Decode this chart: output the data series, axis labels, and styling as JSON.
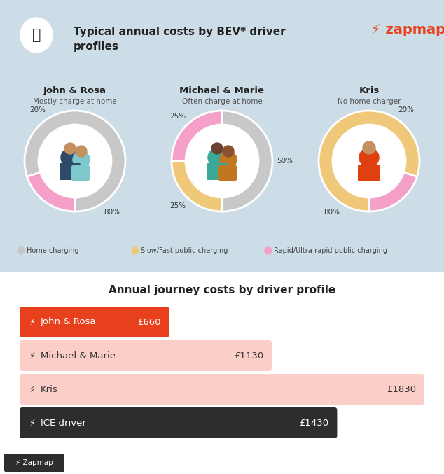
{
  "bg_color": "#ccdde8",
  "white_bg": "#ffffff",
  "header_title": "Typical annual costs by BEV* driver\nprofiles",
  "section2_title": "Annual journey costs by driver profile",
  "profiles": [
    {
      "name": "John & Rosa",
      "subtitle": "Mostly charge at home",
      "home_pct": 80,
      "slow_pct": 0,
      "rapid_pct": 20
    },
    {
      "name": "Michael & Marie",
      "subtitle": "Often charge at home",
      "home_pct": 50,
      "slow_pct": 25,
      "rapid_pct": 25
    },
    {
      "name": "Kris",
      "subtitle": "No home charger",
      "home_pct": 0,
      "slow_pct": 80,
      "rapid_pct": 20
    }
  ],
  "colors": {
    "home": "#c8c8c8",
    "slow": "#F0C87A",
    "rapid": "#F5A0C8"
  },
  "legend": [
    {
      "label": "Home charging",
      "color": "#c8c8c8"
    },
    {
      "label": "Slow/Fast public charging",
      "color": "#F0C87A"
    },
    {
      "label": "Rapid/Ultra-rapid public charging",
      "color": "#F5A0C8"
    }
  ],
  "bars": [
    {
      "label": "John & Rosa",
      "value": 660,
      "max_value": 1830,
      "bar_color": "#E8401C",
      "text_color": "#ffffff",
      "value_label": "£660"
    },
    {
      "label": "Michael & Marie",
      "value": 1130,
      "max_value": 1830,
      "bar_color": "#FBCFC8",
      "text_color": "#333333",
      "value_label": "£1130"
    },
    {
      "label": "Kris",
      "value": 1830,
      "max_value": 1830,
      "bar_color": "#FBCFC8",
      "text_color": "#333333",
      "value_label": "£1830"
    },
    {
      "label": "ICE driver",
      "value": 1430,
      "max_value": 1830,
      "bar_color": "#2d2d2d",
      "text_color": "#ffffff",
      "value_label": "£1430"
    }
  ],
  "zapmap_color": "#E8401C"
}
